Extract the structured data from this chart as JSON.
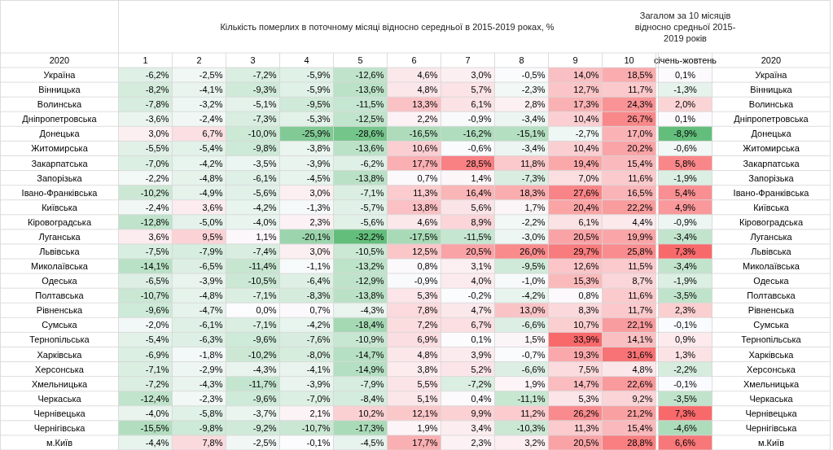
{
  "chart_data": {
    "type": "heatmap",
    "title": "Кількість померлих в поточному місяці відносно середньої в 2015-2019 роках, %",
    "annotations": [
      "Загалом за 10 місяців відносно средньої 2015-2019 років",
      "2020"
    ],
    "ylabel": "2020",
    "categories": [
      "1",
      "2",
      "3",
      "4",
      "5",
      "6",
      "7",
      "8",
      "9",
      "10",
      "січень-жовтень"
    ],
    "y_categories": [
      "Україна",
      "Вінницька",
      "Волинська",
      "Дніпропетровська",
      "Донецька",
      "Житомирська",
      "Закарпатська",
      "Запорізька",
      "Івано-Франківська",
      "Київська",
      "Кіровоградська",
      "Луганська",
      "Львівська",
      "Миколаївська",
      "Одеська",
      "Полтавська",
      "Рівненська",
      "Сумська",
      "Тернопільська",
      "Харківська",
      "Херсонська",
      "Хмельницька",
      "Черкаська",
      "Чернівецька",
      "Чернігівська",
      "м.Київ"
    ],
    "y2_categories": [
      "Україна",
      "Вінницька",
      "Волинська",
      "Дніпропетровська",
      "Донецька",
      "Житомирська",
      "Закарпатська",
      "Запорізька",
      "Івано-Франківська",
      "Київська",
      "Кіровоградська",
      "Луганська",
      "Львівська",
      "Миколаївська",
      "Одеська",
      "Полтавська",
      "Рівненська",
      "Сумська",
      "Тернопільська",
      "Харківська",
      "Херсонська",
      "Хмельницька",
      "Черкаська",
      "Чернівецька",
      "Чернігівська",
      "м.Київ"
    ],
    "cells": [
      [
        -6.2,
        -2.5,
        -7.2,
        -5.9,
        -12.6,
        4.6,
        3.0,
        -0.5,
        14.0,
        18.5,
        0.1
      ],
      [
        -8.2,
        -4.1,
        -9.3,
        -5.9,
        -13.6,
        4.8,
        5.7,
        -2.3,
        12.7,
        11.7,
        -1.3
      ],
      [
        -7.8,
        -3.2,
        -5.1,
        -9.5,
        -11.5,
        13.3,
        6.1,
        2.8,
        17.3,
        24.3,
        2.0
      ],
      [
        -3.6,
        -2.4,
        -7.3,
        -5.3,
        -12.5,
        2.2,
        -0.9,
        -3.4,
        10.4,
        26.7,
        0.1
      ],
      [
        3.0,
        6.7,
        -10.0,
        -25.9,
        -28.6,
        -16.5,
        -16.2,
        -15.1,
        -2.7,
        17.0,
        -8.9
      ],
      [
        -5.5,
        -5.4,
        -9.8,
        -3.8,
        -13.6,
        10.6,
        -0.6,
        -3.4,
        10.4,
        20.2,
        -0.6
      ],
      [
        -7.0,
        -4.2,
        -3.5,
        -3.9,
        -6.2,
        17.7,
        28.5,
        11.8,
        19.4,
        15.4,
        5.8
      ],
      [
        -2.2,
        -4.8,
        -6.1,
        -4.5,
        -13.8,
        0.7,
        1.4,
        -7.3,
        7.0,
        11.6,
        -1.9
      ],
      [
        -10.2,
        -4.9,
        -5.6,
        3.0,
        -7.1,
        11.3,
        16.4,
        18.3,
        27.6,
        16.5,
        5.4
      ],
      [
        -2.4,
        3.6,
        -4.2,
        -1.3,
        -5.7,
        13.8,
        5.6,
        1.7,
        20.4,
        22.2,
        4.9
      ],
      [
        -12.8,
        -5.0,
        -4.0,
        2.3,
        -5.6,
        4.6,
        8.9,
        -2.2,
        6.1,
        4.4,
        -0.9
      ],
      [
        3.6,
        9.5,
        1.1,
        -20.1,
        -32.2,
        -17.5,
        -11.5,
        -3.0,
        20.5,
        19.9,
        -3.4
      ],
      [
        -7.5,
        -7.9,
        -7.4,
        3.0,
        -10.5,
        12.5,
        20.5,
        26.0,
        29.7,
        25.8,
        7.3
      ],
      [
        -14.1,
        -6.5,
        -11.4,
        -1.1,
        -13.2,
        0.8,
        3.1,
        -9.5,
        12.6,
        11.5,
        -3.4
      ],
      [
        -6.5,
        -3.9,
        -10.5,
        -6.4,
        -12.9,
        -0.9,
        4.0,
        -1.0,
        15.3,
        8.7,
        -1.9
      ],
      [
        -10.7,
        -4.8,
        -7.1,
        -8.3,
        -13.8,
        5.3,
        -0.2,
        -4.2,
        0.8,
        11.6,
        -3.5
      ],
      [
        -9.6,
        -4.7,
        0.0,
        0.7,
        -4.3,
        7.8,
        4.7,
        13.0,
        8.3,
        11.7,
        2.3
      ],
      [
        -2.0,
        -6.1,
        -7.1,
        -4.2,
        -18.4,
        7.2,
        6.7,
        -6.6,
        10.7,
        22.1,
        -0.1
      ],
      [
        -5.4,
        -6.3,
        -9.6,
        -7.6,
        -10.9,
        6.9,
        0.1,
        1.5,
        33.9,
        14.1,
        0.9
      ],
      [
        -6.9,
        -1.8,
        -10.2,
        -8.0,
        -14.7,
        4.8,
        3.9,
        -0.7,
        19.3,
        31.6,
        1.3
      ],
      [
        -7.1,
        -2.9,
        -4.3,
        -4.1,
        -14.9,
        3.8,
        5.2,
        -6.6,
        7.5,
        4.8,
        -2.2
      ],
      [
        -7.2,
        -4.3,
        -11.7,
        -3.9,
        -7.9,
        5.5,
        -7.2,
        1.9,
        14.7,
        22.6,
        -0.1
      ],
      [
        -12.4,
        -2.3,
        -9.6,
        -7.0,
        -8.4,
        5.1,
        0.4,
        -11.1,
        5.3,
        9.2,
        -3.5
      ],
      [
        -4.0,
        -5.8,
        -3.7,
        2.1,
        10.2,
        12.1,
        9.9,
        11.2,
        26.2,
        21.2,
        7.3
      ],
      [
        -15.5,
        -9.8,
        -9.2,
        -10.7,
        -17.3,
        1.9,
        3.4,
        -10.3,
        11.3,
        15.4,
        -4.6
      ],
      [
        -4.4,
        7.8,
        -2.5,
        -0.1,
        -4.5,
        17.7,
        2.3,
        3.2,
        20.5,
        28.8,
        6.6
      ]
    ],
    "cell_labels": [
      [
        "-6,2%",
        "-2,5%",
        "-7,2%",
        "-5,9%",
        "-12,6%",
        "4,6%",
        "3,0%",
        "-0,5%",
        "14,0%",
        "18,5%",
        "0,1%"
      ],
      [
        "-8,2%",
        "-4,1%",
        "-9,3%",
        "-5,9%",
        "-13,6%",
        "4,8%",
        "5,7%",
        "-2,3%",
        "12,7%",
        "11,7%",
        "-1,3%"
      ],
      [
        "-7,8%",
        "-3,2%",
        "-5,1%",
        "-9,5%",
        "-11,5%",
        "13,3%",
        "6,1%",
        "2,8%",
        "17,3%",
        "24,3%",
        "2,0%"
      ],
      [
        "-3,6%",
        "-2,4%",
        "-7,3%",
        "-5,3%",
        "-12,5%",
        "2,2%",
        "-0,9%",
        "-3,4%",
        "10,4%",
        "26,7%",
        "0,1%"
      ],
      [
        "3,0%",
        "6,7%",
        "-10,0%",
        "-25,9%",
        "-28,6%",
        "-16,5%",
        "-16,2%",
        "-15,1%",
        "-2,7%",
        "17,0%",
        "-8,9%"
      ],
      [
        "-5,5%",
        "-5,4%",
        "-9,8%",
        "-3,8%",
        "-13,6%",
        "10,6%",
        "-0,6%",
        "-3,4%",
        "10,4%",
        "20,2%",
        "-0,6%"
      ],
      [
        "-7,0%",
        "-4,2%",
        "-3,5%",
        "-3,9%",
        "-6,2%",
        "17,7%",
        "28,5%",
        "11,8%",
        "19,4%",
        "15,4%",
        "5,8%"
      ],
      [
        "-2,2%",
        "-4,8%",
        "-6,1%",
        "-4,5%",
        "-13,8%",
        "0,7%",
        "1,4%",
        "-7,3%",
        "7,0%",
        "11,6%",
        "-1,9%"
      ],
      [
        "-10,2%",
        "-4,9%",
        "-5,6%",
        "3,0%",
        "-7,1%",
        "11,3%",
        "16,4%",
        "18,3%",
        "27,6%",
        "16,5%",
        "5,4%"
      ],
      [
        "-2,4%",
        "3,6%",
        "-4,2%",
        "-1,3%",
        "-5,7%",
        "13,8%",
        "5,6%",
        "1,7%",
        "20,4%",
        "22,2%",
        "4,9%"
      ],
      [
        "-12,8%",
        "-5,0%",
        "-4,0%",
        "2,3%",
        "-5,6%",
        "4,6%",
        "8,9%",
        "-2,2%",
        "6,1%",
        "4,4%",
        "-0,9%"
      ],
      [
        "3,6%",
        "9,5%",
        "1,1%",
        "-20,1%",
        "-32,2%",
        "-17,5%",
        "-11,5%",
        "-3,0%",
        "20,5%",
        "19,9%",
        "-3,4%"
      ],
      [
        "-7,5%",
        "-7,9%",
        "-7,4%",
        "3,0%",
        "-10,5%",
        "12,5%",
        "20,5%",
        "26,0%",
        "29,7%",
        "25,8%",
        "7,3%"
      ],
      [
        "-14,1%",
        "-6,5%",
        "-11,4%",
        "-1,1%",
        "-13,2%",
        "0,8%",
        "3,1%",
        "-9,5%",
        "12,6%",
        "11,5%",
        "-3,4%"
      ],
      [
        "-6,5%",
        "-3,9%",
        "-10,5%",
        "-6,4%",
        "-12,9%",
        "-0,9%",
        "4,0%",
        "-1,0%",
        "15,3%",
        "8,7%",
        "-1,9%"
      ],
      [
        "-10,7%",
        "-4,8%",
        "-7,1%",
        "-8,3%",
        "-13,8%",
        "5,3%",
        "-0,2%",
        "-4,2%",
        "0,8%",
        "11,6%",
        "-3,5%"
      ],
      [
        "-9,6%",
        "-4,7%",
        "0,0%",
        "0,7%",
        "-4,3%",
        "7,8%",
        "4,7%",
        "13,0%",
        "8,3%",
        "11,7%",
        "2,3%"
      ],
      [
        "-2,0%",
        "-6,1%",
        "-7,1%",
        "-4,2%",
        "-18,4%",
        "7,2%",
        "6,7%",
        "-6,6%",
        "10,7%",
        "22,1%",
        "-0,1%"
      ],
      [
        "-5,4%",
        "-6,3%",
        "-9,6%",
        "-7,6%",
        "-10,9%",
        "6,9%",
        "0,1%",
        "1,5%",
        "33,9%",
        "14,1%",
        "0,9%"
      ],
      [
        "-6,9%",
        "-1,8%",
        "-10,2%",
        "-8,0%",
        "-14,7%",
        "4,8%",
        "3,9%",
        "-0,7%",
        "19,3%",
        "31,6%",
        "1,3%"
      ],
      [
        "-7,1%",
        "-2,9%",
        "-4,3%",
        "-4,1%",
        "-14,9%",
        "3,8%",
        "5,2%",
        "-6,6%",
        "7,5%",
        "4,8%",
        "-2,2%"
      ],
      [
        "-7,2%",
        "-4,3%",
        "-11,7%",
        "-3,9%",
        "-7,9%",
        "5,5%",
        "-7,2%",
        "1,9%",
        "14,7%",
        "22,6%",
        "-0,1%"
      ],
      [
        "-12,4%",
        "-2,3%",
        "-9,6%",
        "-7,0%",
        "-8,4%",
        "5,1%",
        "0,4%",
        "-11,1%",
        "5,3%",
        "9,2%",
        "-3,5%"
      ],
      [
        "-4,0%",
        "-5,8%",
        "-3,7%",
        "2,1%",
        "10,2%",
        "12,1%",
        "9,9%",
        "11,2%",
        "26,2%",
        "21,2%",
        "7,3%"
      ],
      [
        "-15,5%",
        "-9,8%",
        "-9,2%",
        "-10,7%",
        "-17,3%",
        "1,9%",
        "3,4%",
        "-10,3%",
        "11,3%",
        "15,4%",
        "-4,6%"
      ],
      [
        "-4,4%",
        "7,8%",
        "-2,5%",
        "-0,1%",
        "-4,5%",
        "17,7%",
        "2,3%",
        "3,2%",
        "20,5%",
        "28,8%",
        "6,6%"
      ]
    ]
  }
}
